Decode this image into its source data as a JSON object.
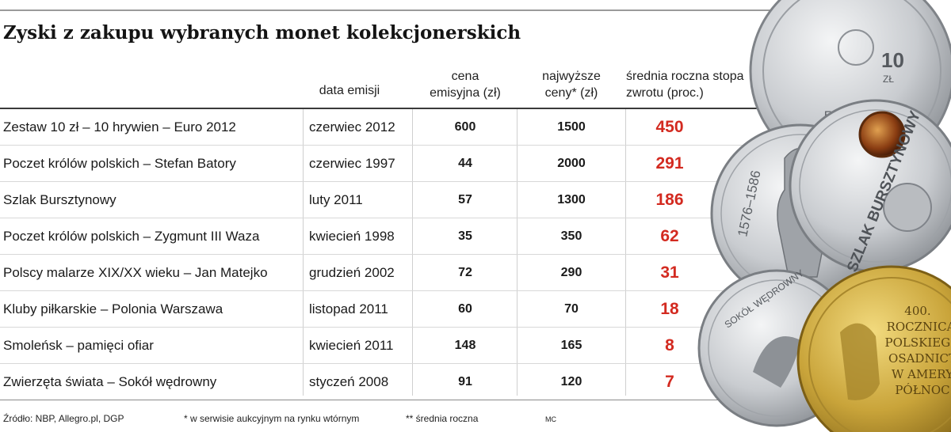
{
  "title": "Zyski z zakupu wybranych monet kolekcjonerskich",
  "columns": {
    "date": "data emisji",
    "price": [
      "cena",
      "emisyjna (zł)"
    ],
    "max_price": [
      "najwyższe",
      "ceny* (zł)"
    ],
    "return": [
      "średnia roczna stopa",
      "zwrotu (proc.)"
    ]
  },
  "chart_data": {
    "type": "table",
    "title": "Zyski z zakupu wybranych monet kolekcjonerskich",
    "headers": [
      "",
      "data emisji",
      "cena emisyjna (zł)",
      "najwyższe ceny* (zł)",
      "średnia roczna stopa zwrotu (proc.)"
    ],
    "rows": [
      {
        "name": "Zestaw 10 zł – 10 hrywien – Euro 2012",
        "date": "czerwiec 2012",
        "price": "600",
        "max": "1500",
        "return": "450"
      },
      {
        "name": "Poczet królów polskich – Stefan Batory",
        "date": "czerwiec 1997",
        "price": "44",
        "max": "2000",
        "return": "291"
      },
      {
        "name": "Szlak Bursztynowy",
        "date": "luty 2011",
        "price": "57",
        "max": "1300",
        "return": "186"
      },
      {
        "name": "Poczet królów polskich – Zygmunt III Waza",
        "date": "kwiecień 1998",
        "price": "35",
        "max": "350",
        "return": "62"
      },
      {
        "name": "Polscy malarze XIX/XX wieku – Jan Matejko",
        "date": "grudzień 2002",
        "price": "72",
        "max": "290",
        "return": "31"
      },
      {
        "name": "Kluby piłkarskie – Polonia Warszawa",
        "date": "listopad 2011",
        "price": "60",
        "max": "70",
        "return": "18"
      },
      {
        "name": "Smoleńsk – pamięci ofiar",
        "date": "kwiecień 2011",
        "price": "148",
        "max": "165",
        "return": "8"
      },
      {
        "name": "Zwierzęta świata – Sokół wędrowny",
        "date": "styczeń 2008",
        "price": "91",
        "max": "120",
        "return": "7"
      }
    ]
  },
  "footer": {
    "source": "Źródło: NBP, Allegro.pl, DGP",
    "note1": "* w serwisie aukcyjnym na rynku wtórnym",
    "note2": "** średnia roczna",
    "credit": "MC"
  },
  "coins": {
    "euro": "EURO",
    "batory_years": "1576–1586",
    "amber": "SZLAK BURSZTYNOWY",
    "falcon": "SOKÓŁ WĘDROWNY",
    "gold": [
      "400.",
      "ROCZNICA",
      "POLSKIEGO",
      "OSADNICT",
      "W AMERY",
      "PÓŁNOC"
    ],
    "ten": "10",
    "ten_unit": "ZŁ",
    "colors": {
      "silver": "#c9ccd0",
      "gold": "#c9a43a",
      "amber": "#8a3d12",
      "accent": "#d32a20"
    }
  }
}
